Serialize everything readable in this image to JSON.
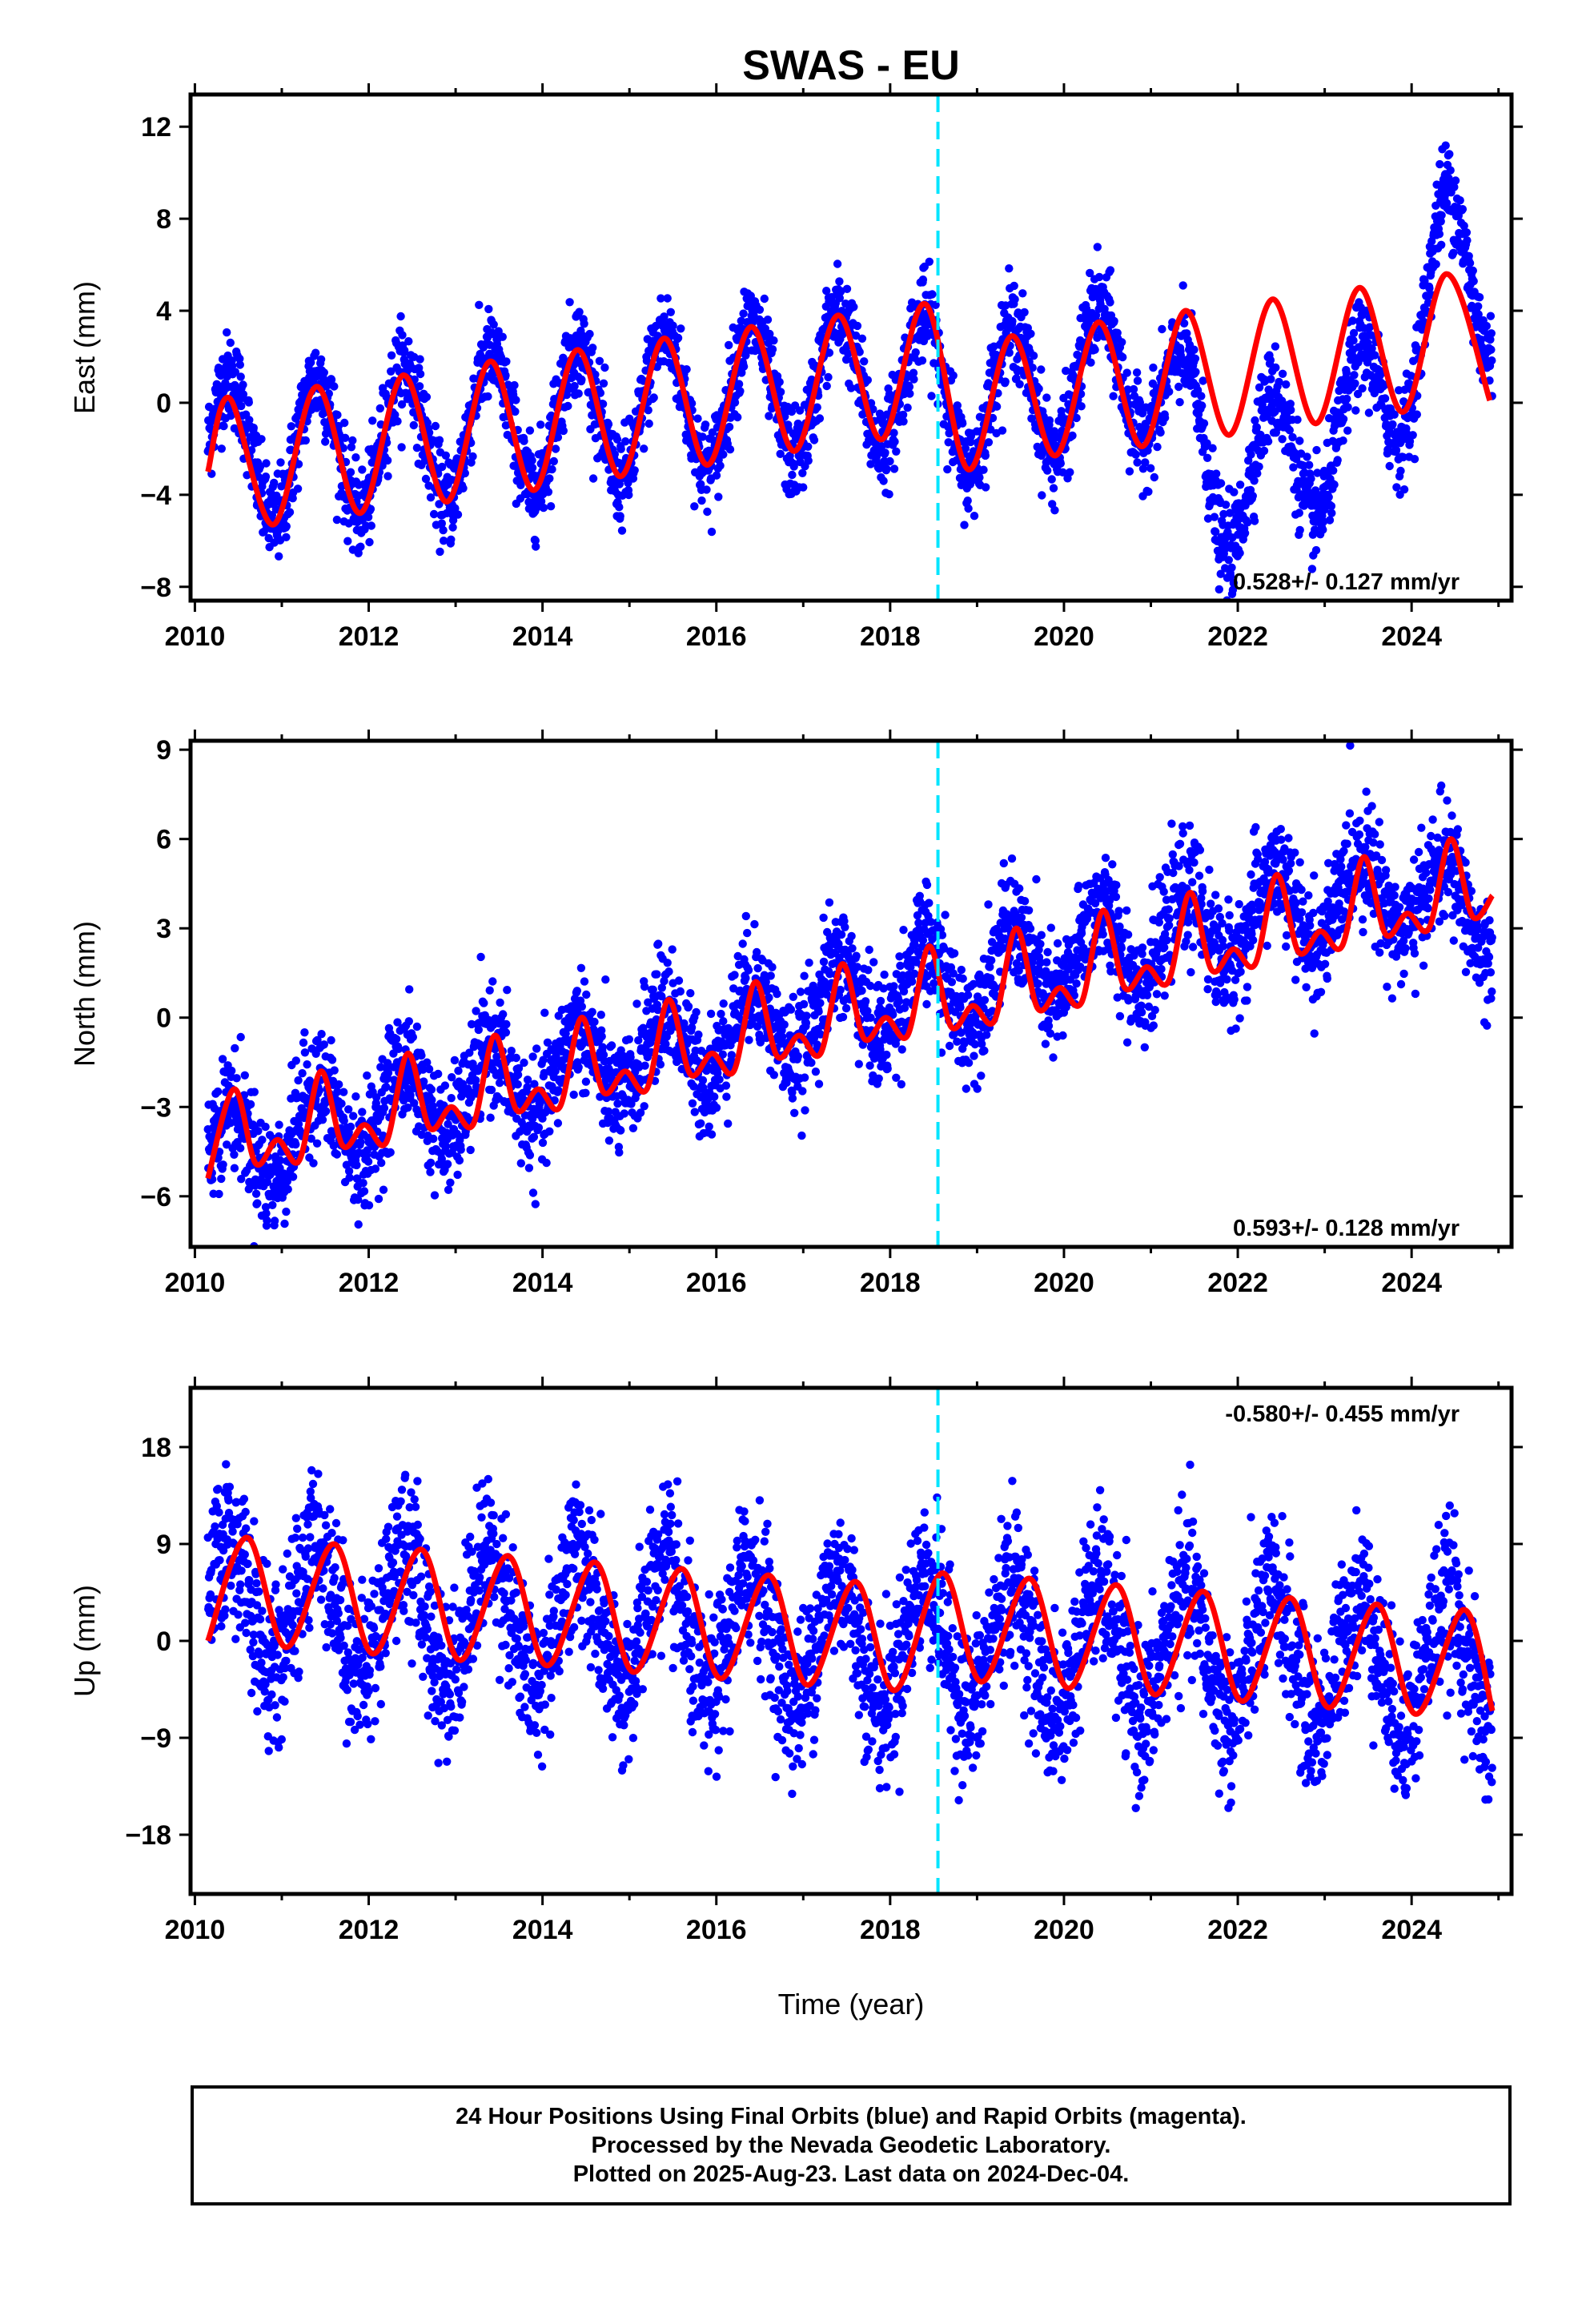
{
  "title": "SWAS - EU",
  "footer": {
    "line1": "24 Hour Positions Using Final Orbits (blue) and Rapid Orbits (magenta).",
    "line2": "Processed by the Nevada Geodetic Laboratory.",
    "line3": "Plotted on 2025-Aug-23. Last data on 2024-Dec-04."
  },
  "colors": {
    "data": "#0000ff",
    "model": "#ff0000",
    "marker": "#00e5ff"
  },
  "chart_data": [
    {
      "type": "scatter",
      "panel": "east",
      "ylabel": "East (mm)",
      "xlim": [
        2009.95,
        2025.15
      ],
      "ylim": [
        -8.6,
        13.4
      ],
      "xticks": [
        2010,
        2012,
        2014,
        2016,
        2018,
        2020,
        2022,
        2024
      ],
      "yticks": [
        -8,
        -4,
        0,
        4,
        8,
        12
      ],
      "rate_label": "0.528+/- 0.127 mm/yr",
      "rate_placement": "bottom-right",
      "equipment_change": 2018.55,
      "data_range": [
        2010.15,
        2024.93
      ],
      "model": {
        "x": [
          2010.15,
          2010.4,
          2010.9,
          2011.4,
          2011.9,
          2012.4,
          2012.9,
          2013.4,
          2013.9,
          2014.4,
          2014.9,
          2015.4,
          2015.9,
          2016.4,
          2016.9,
          2017.4,
          2017.9,
          2018.4,
          2018.9,
          2019.4,
          2019.9,
          2020.4,
          2020.9,
          2021.4,
          2021.9,
          2022.4,
          2022.9,
          2023.4,
          2023.9,
          2024.4,
          2024.9
        ],
        "y": [
          -3.0,
          0.2,
          -5.3,
          0.7,
          -4.8,
          1.2,
          -4.3,
          1.8,
          -3.8,
          2.3,
          -3.2,
          2.8,
          -2.7,
          3.3,
          -2.1,
          3.8,
          -1.6,
          4.3,
          -2.9,
          2.9,
          -2.3,
          3.5,
          -1.9,
          4.0,
          -1.4,
          4.5,
          -0.9,
          5.0,
          -0.4,
          5.6,
          0.1
        ]
      },
      "observed_trend": {
        "x": [
          2010.15,
          2011,
          2012,
          2013,
          2014,
          2015,
          2016,
          2017,
          2018,
          2019,
          2020,
          2021,
          2021.8,
          2022.5,
          2023.2,
          2023.9,
          2024.4,
          2024.93
        ],
        "y": [
          -1.8,
          -2.2,
          -1.7,
          -1.2,
          -0.7,
          -0.3,
          0.2,
          0.7,
          1.2,
          0.0,
          0.8,
          1.5,
          -3.5,
          -2.5,
          -1.5,
          1.5,
          6.5,
          5.0
        ]
      },
      "amplitude": 3.0,
      "scatter_sd": 1.0
    },
    {
      "type": "scatter",
      "panel": "north",
      "ylabel": "North (mm)",
      "xlim": [
        2009.95,
        2025.15
      ],
      "ylim": [
        -7.7,
        9.3
      ],
      "xticks": [
        2010,
        2012,
        2014,
        2016,
        2018,
        2020,
        2022,
        2024
      ],
      "yticks": [
        -6,
        -3,
        0,
        3,
        6,
        9
      ],
      "rate_label": "0.593+/- 0.128 mm/yr",
      "rate_placement": "bottom-right",
      "equipment_change": 2018.55,
      "data_range": [
        2010.15,
        2024.93
      ],
      "model": {
        "x": [
          2010.15,
          2010.45,
          2010.7,
          2010.95,
          2011.2,
          2011.45,
          2011.7,
          2011.95,
          2012.2,
          2012.45,
          2012.7,
          2012.95,
          2013.2,
          2013.45,
          2013.7,
          2013.95,
          2014.2,
          2014.45,
          2014.7,
          2014.95,
          2015.2,
          2015.45,
          2015.7,
          2015.95,
          2016.2,
          2016.45,
          2016.7,
          2016.95,
          2017.2,
          2017.45,
          2017.7,
          2017.95,
          2018.2,
          2018.45,
          2018.7,
          2018.95,
          2019.2,
          2019.45,
          2019.7,
          2019.95,
          2020.2,
          2020.45,
          2020.7,
          2020.95,
          2021.2,
          2021.45,
          2021.7,
          2021.95,
          2022.2,
          2022.45,
          2022.7,
          2022.95,
          2023.2,
          2023.45,
          2023.7,
          2023.95,
          2024.2,
          2024.45,
          2024.7,
          2024.93
        ],
        "y": [
          -5.4,
          -2.4,
          -4.9,
          -4.1,
          -4.8,
          -1.8,
          -4.3,
          -3.6,
          -4.2,
          -1.2,
          -3.7,
          -3.0,
          -3.6,
          -0.6,
          -3.1,
          -2.4,
          -3.0,
          0.0,
          -2.5,
          -1.8,
          -2.4,
          0.6,
          -1.9,
          -1.2,
          -1.8,
          1.2,
          -1.3,
          -0.6,
          -1.2,
          1.8,
          -0.7,
          0.0,
          -0.6,
          2.4,
          -0.3,
          0.4,
          -0.1,
          3.0,
          0.3,
          1.0,
          0.5,
          3.6,
          1.0,
          1.7,
          1.2,
          4.2,
          1.6,
          2.3,
          1.8,
          4.8,
          2.2,
          2.9,
          2.4,
          5.4,
          2.8,
          3.5,
          3.0,
          6.0,
          3.4,
          4.1
        ]
      },
      "observed_trend": {
        "x": [
          2010.15,
          2012,
          2014,
          2016,
          2018,
          2018.55,
          2020,
          2022,
          2024,
          2024.93
        ],
        "y": [
          -4.6,
          -3.2,
          -2.0,
          -0.6,
          0.9,
          1.0,
          2.0,
          3.2,
          4.4,
          3.0
        ]
      },
      "amplitude": 1.4,
      "scatter_sd": 0.95
    },
    {
      "type": "scatter",
      "panel": "up",
      "ylabel": "Up (mm)",
      "xlabel": "Time (year)",
      "xlim": [
        2009.95,
        2025.15
      ],
      "ylim": [
        -23.5,
        23.5
      ],
      "xticks": [
        2010,
        2012,
        2014,
        2016,
        2018,
        2020,
        2022,
        2024
      ],
      "yticks": [
        -18,
        -9,
        0,
        9,
        18
      ],
      "rate_label": "-0.580+/- 0.455 mm/yr",
      "rate_placement": "top-right",
      "equipment_change": 2018.55,
      "data_range": [
        2010.15,
        2024.93
      ],
      "model": {
        "x": [
          2010.15,
          2010.6,
          2011.05,
          2011.6,
          2012.05,
          2012.6,
          2013.05,
          2013.6,
          2014.05,
          2014.6,
          2015.05,
          2015.6,
          2016.05,
          2016.6,
          2017.05,
          2017.6,
          2018.05,
          2018.6,
          2019.05,
          2019.6,
          2020.05,
          2020.6,
          2021.05,
          2021.6,
          2022.05,
          2022.6,
          2023.05,
          2023.6,
          2024.05,
          2024.6,
          2024.93
        ],
        "y": [
          0.0,
          9.6,
          -0.6,
          9.0,
          -1.2,
          8.5,
          -1.8,
          7.9,
          -2.3,
          7.3,
          -2.9,
          6.7,
          -3.5,
          6.1,
          -4.1,
          5.5,
          -4.6,
          6.3,
          -3.8,
          5.8,
          -4.4,
          5.2,
          -5.0,
          4.6,
          -5.6,
          4.0,
          -6.2,
          3.4,
          -6.8,
          2.9,
          -6.5
        ]
      },
      "observed_trend": {
        "x": [
          2010.15,
          2012,
          2014,
          2016,
          2018,
          2020,
          2022,
          2024,
          2024.93
        ],
        "y": [
          3.5,
          3.0,
          2.0,
          0.8,
          -0.2,
          -0.8,
          -1.4,
          -2.0,
          -2.0
        ]
      },
      "amplitude": 6.0,
      "scatter_sd": 3.6
    }
  ]
}
